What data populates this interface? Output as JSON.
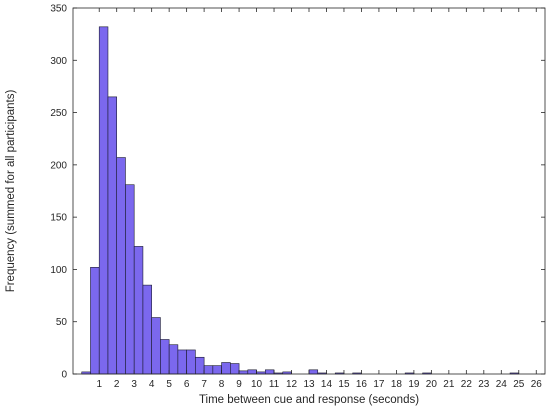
{
  "chart_data": {
    "type": "bar",
    "xlabel": "Time between cue and response (seconds)",
    "ylabel": "Frequency (summed for all participants)",
    "bin_width": 0.5,
    "xlim": [
      -0.5,
      26.5
    ],
    "ylim": [
      0,
      350
    ],
    "xticks": [
      "1",
      "2",
      "3",
      "4",
      "5",
      "6",
      "7",
      "8",
      "9",
      "10",
      "11",
      "12",
      "13",
      "14",
      "15",
      "16",
      "17",
      "18",
      "19",
      "20",
      "21",
      "22",
      "23",
      "24",
      "25",
      "26"
    ],
    "yticks": [
      "0",
      "50",
      "100",
      "150",
      "200",
      "250",
      "300",
      "350"
    ],
    "bar_color": "#7b68ee",
    "bins": [
      {
        "x0": 0.0,
        "value": 2
      },
      {
        "x0": 0.5,
        "value": 102
      },
      {
        "x0": 1.0,
        "value": 332
      },
      {
        "x0": 1.5,
        "value": 265
      },
      {
        "x0": 2.0,
        "value": 207
      },
      {
        "x0": 2.5,
        "value": 181
      },
      {
        "x0": 3.0,
        "value": 122
      },
      {
        "x0": 3.5,
        "value": 85
      },
      {
        "x0": 4.0,
        "value": 54
      },
      {
        "x0": 4.5,
        "value": 33
      },
      {
        "x0": 5.0,
        "value": 28
      },
      {
        "x0": 5.5,
        "value": 23
      },
      {
        "x0": 6.0,
        "value": 23
      },
      {
        "x0": 6.5,
        "value": 16
      },
      {
        "x0": 7.0,
        "value": 8
      },
      {
        "x0": 7.5,
        "value": 8
      },
      {
        "x0": 8.0,
        "value": 11
      },
      {
        "x0": 8.5,
        "value": 10
      },
      {
        "x0": 9.0,
        "value": 3
      },
      {
        "x0": 9.5,
        "value": 4
      },
      {
        "x0": 10.0,
        "value": 2
      },
      {
        "x0": 10.5,
        "value": 4
      },
      {
        "x0": 11.0,
        "value": 1
      },
      {
        "x0": 11.5,
        "value": 2
      },
      {
        "x0": 13.0,
        "value": 4
      },
      {
        "x0": 13.5,
        "value": 1
      },
      {
        "x0": 14.5,
        "value": 1
      },
      {
        "x0": 15.5,
        "value": 1
      },
      {
        "x0": 18.5,
        "value": 1
      },
      {
        "x0": 19.5,
        "value": 1
      },
      {
        "x0": 24.5,
        "value": 1
      }
    ]
  }
}
